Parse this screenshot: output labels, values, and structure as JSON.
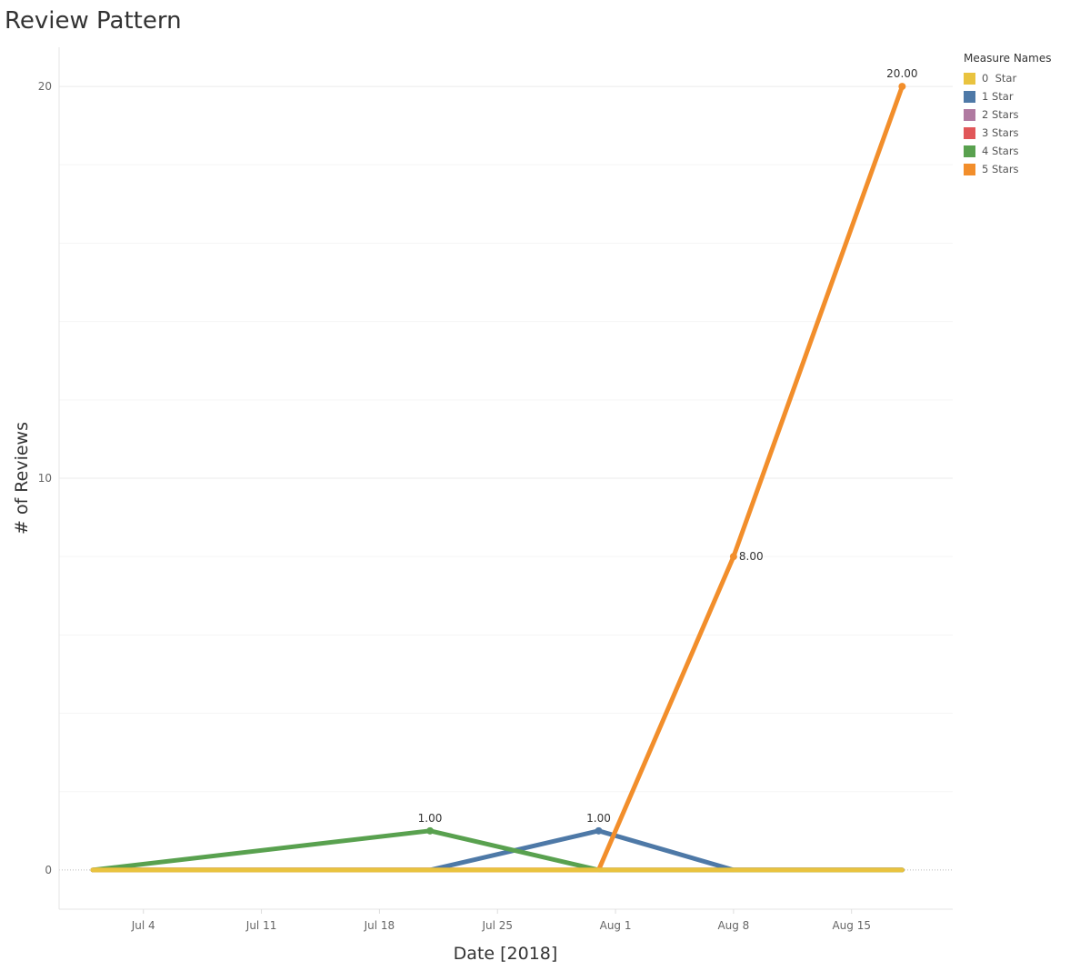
{
  "title": "Review Pattern",
  "chart_data": {
    "type": "line",
    "title": "Review Pattern",
    "xlabel": "Date [2018]",
    "ylabel": "# of Reviews",
    "x_ticks": [
      "Jul 4",
      "Jul 11",
      "Jul 18",
      "Jul 25",
      "Aug 1",
      "Aug 8",
      "Aug 15"
    ],
    "x_tick_dates": [
      "2018-07-04",
      "2018-07-11",
      "2018-07-18",
      "2018-07-25",
      "2018-08-01",
      "2018-08-08",
      "2018-08-15"
    ],
    "y_ticks": [
      0,
      10,
      20
    ],
    "xlim": [
      "2018-06-29",
      "2018-08-21"
    ],
    "ylim": [
      -1,
      21
    ],
    "grid": true,
    "legend_position": "top-right",
    "legend_title": "Measure Names",
    "x": [
      "2018-07-01",
      "2018-07-21",
      "2018-07-31",
      "2018-08-08",
      "2018-08-18"
    ],
    "series": [
      {
        "name": "0  Star",
        "color": "#e9c33f",
        "values": [
          0,
          0,
          0,
          0,
          0
        ],
        "labels": [
          "",
          "",
          "",
          "",
          ""
        ]
      },
      {
        "name": "1 Star",
        "color": "#4e79a7",
        "values": [
          0,
          0,
          1,
          0,
          0
        ],
        "labels": [
          "",
          "",
          "1.00",
          "",
          ""
        ]
      },
      {
        "name": "2 Stars",
        "color": "#b07aa1",
        "values": [
          0,
          0,
          0,
          0,
          0
        ],
        "labels": [
          "",
          "",
          "",
          "",
          ""
        ]
      },
      {
        "name": "3 Stars",
        "color": "#e15759",
        "values": [
          0,
          0,
          0,
          0,
          0
        ],
        "labels": [
          "",
          "",
          "",
          "",
          ""
        ]
      },
      {
        "name": "4 Stars",
        "color": "#59a14f",
        "values": [
          0,
          1,
          0,
          0,
          0
        ],
        "labels": [
          "",
          "1.00",
          "",
          "",
          ""
        ]
      },
      {
        "name": "5 Stars",
        "color": "#f28e2b",
        "values": [
          0,
          0,
          0,
          8,
          20
        ],
        "labels": [
          "",
          "",
          "",
          "8.00",
          "20.00"
        ]
      }
    ],
    "draw_order": [
      "2 Stars",
      "3 Stars",
      "1 Star",
      "4 Stars",
      "5 Stars",
      "0  Star"
    ]
  }
}
